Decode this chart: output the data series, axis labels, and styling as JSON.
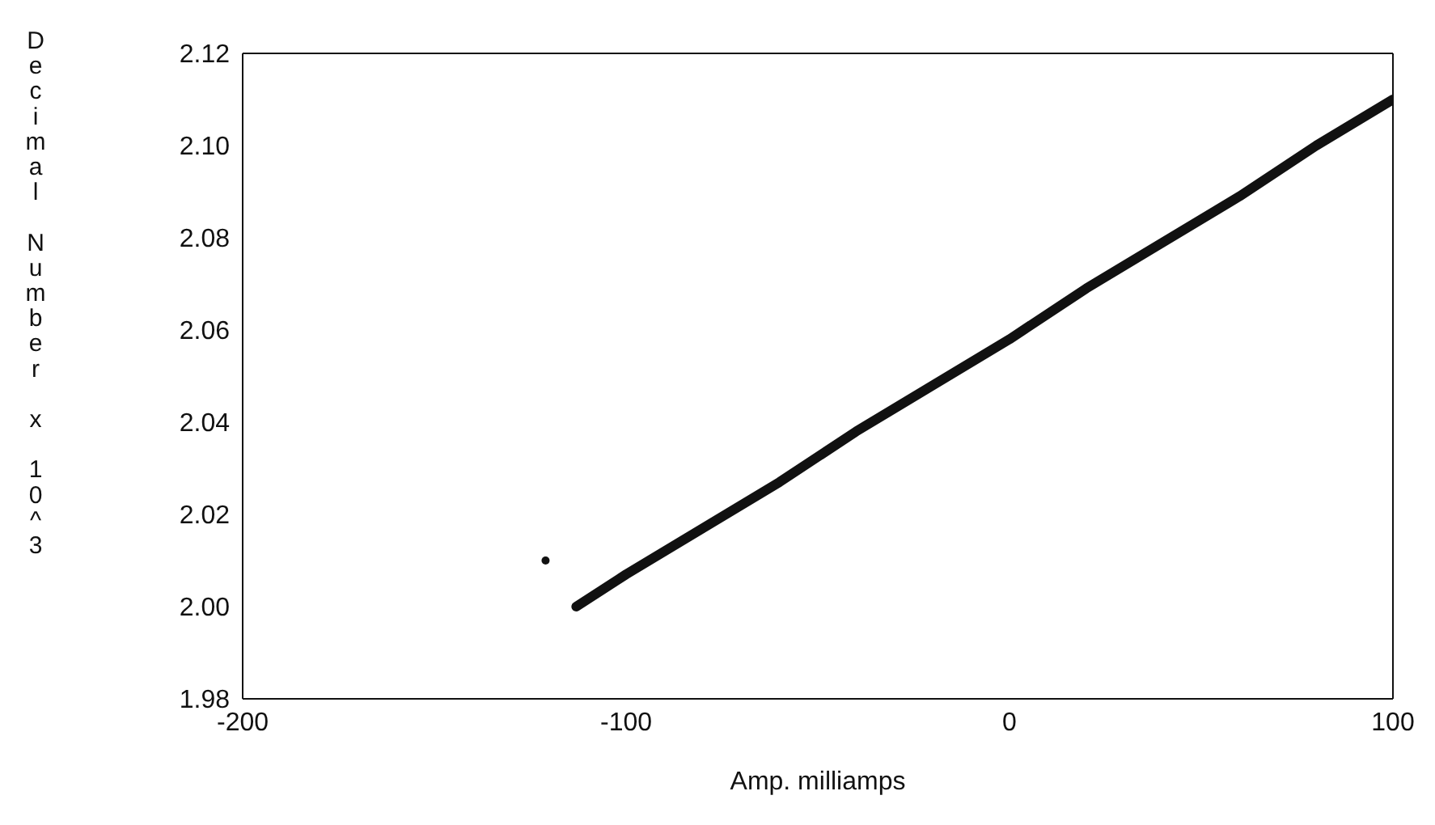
{
  "chart_data": {
    "type": "line",
    "xlabel": "Amp. milliamps",
    "ylabel": "Decimal Number x 10^3",
    "xlim": [
      -200,
      100
    ],
    "xticks": [
      -200,
      -100,
      0,
      100
    ],
    "ylim": [
      1.98,
      2.12
    ],
    "yticks": [
      {
        "value": 1.98,
        "label": "1.98"
      },
      {
        "value": 2.0,
        "label": "2.00"
      },
      {
        "value": 2.02,
        "label": "2.02"
      },
      {
        "value": 2.04,
        "label": "2.04"
      },
      {
        "value": 2.06,
        "label": "2.06"
      },
      {
        "value": 2.08,
        "label": "2.08"
      },
      {
        "value": 2.1,
        "label": "2.10"
      },
      {
        "value": 2.12,
        "label": "2.12"
      }
    ],
    "grid": false,
    "series": [
      {
        "color": "#111111",
        "x": [
          -113,
          -100,
          -80,
          -60,
          -40,
          -20,
          0,
          20,
          40,
          60,
          80,
          100
        ],
        "values": [
          2.0,
          2.007,
          2.017,
          2.027,
          2.038,
          2.048,
          2.058,
          2.069,
          2.079,
          2.089,
          2.1,
          2.11
        ]
      },
      {
        "type": "scatter",
        "color": "#111111",
        "x": [
          -121
        ],
        "values": [
          2.01
        ]
      }
    ]
  }
}
